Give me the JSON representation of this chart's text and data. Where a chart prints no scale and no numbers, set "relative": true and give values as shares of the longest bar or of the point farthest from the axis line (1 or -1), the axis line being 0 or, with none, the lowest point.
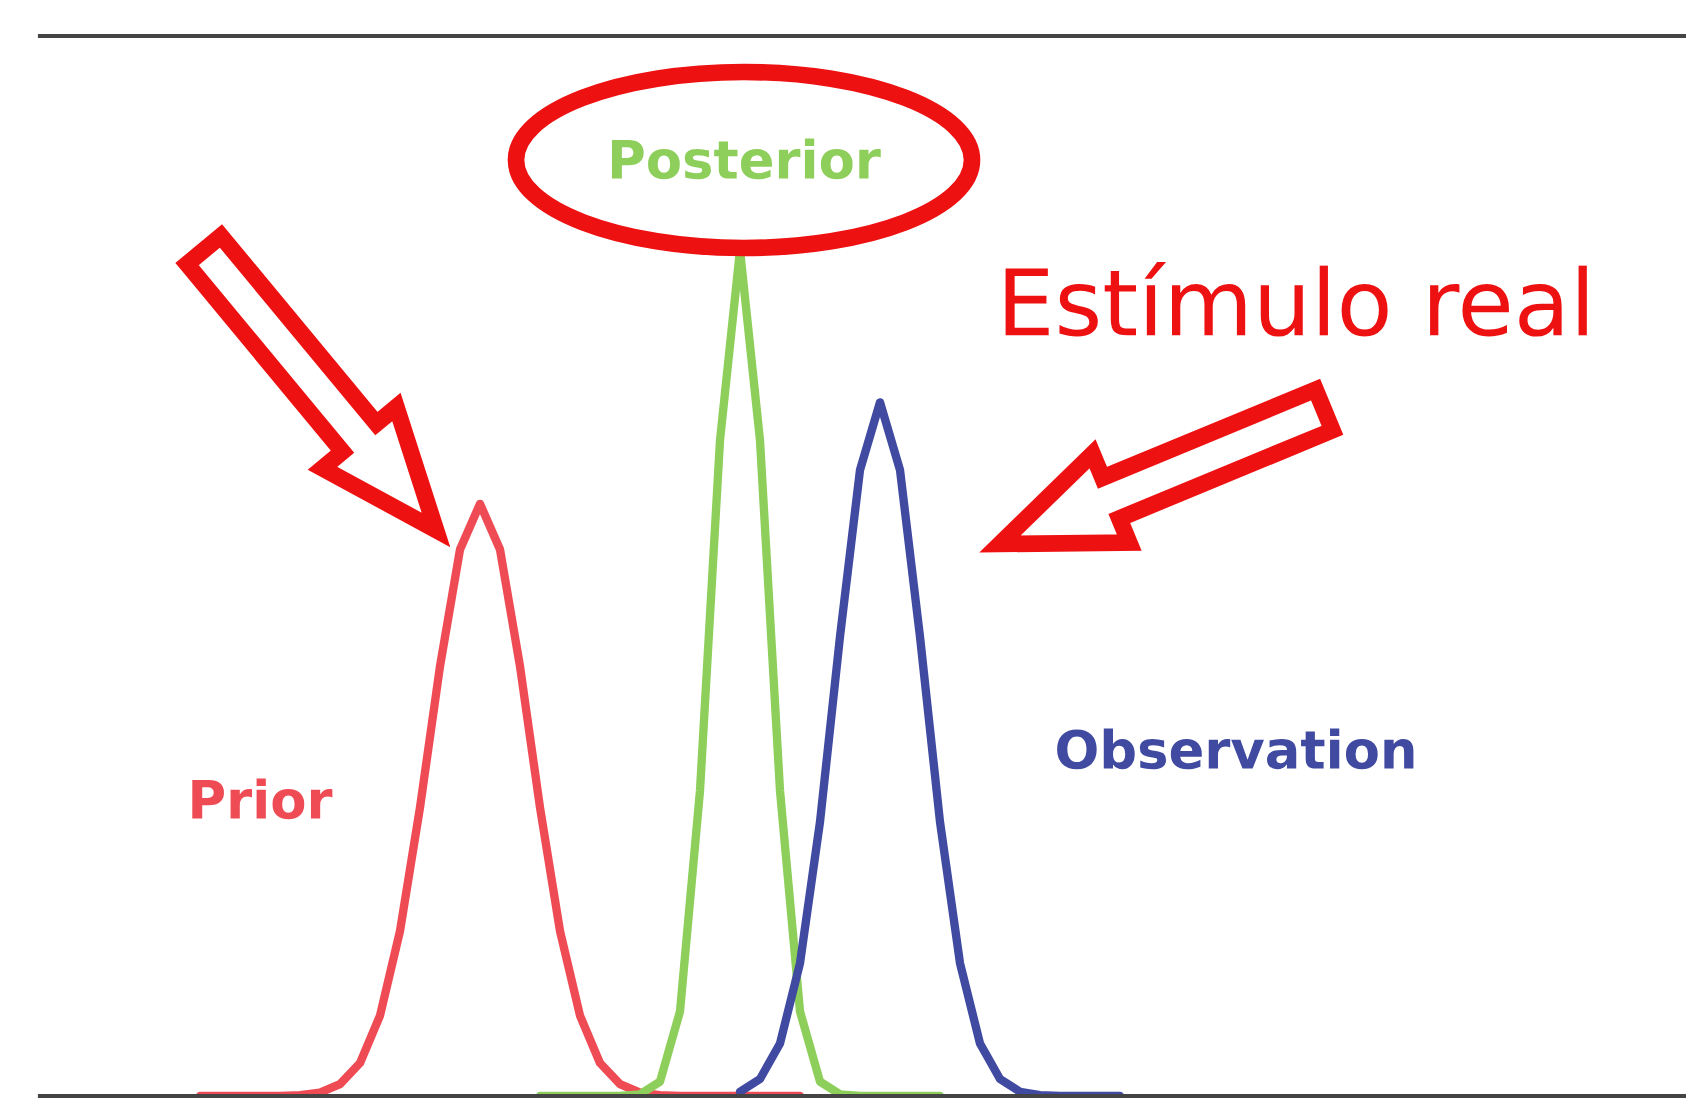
{
  "chart_data": {
    "type": "line",
    "relative": true,
    "grid": false,
    "legend": false,
    "categories": [
      null,
      null,
      null,
      null,
      null,
      null,
      null,
      null,
      null,
      null,
      null,
      null,
      null,
      null,
      null,
      null,
      null,
      null,
      null,
      null,
      null,
      null,
      null,
      null,
      null,
      null,
      null,
      null,
      null,
      null,
      null,
      null,
      null,
      null,
      null,
      null,
      null,
      null,
      null,
      null,
      null,
      null,
      null,
      null,
      null,
      null,
      null
    ],
    "series": [
      {
        "name": "Prior",
        "color": "#ee4b55",
        "values": [
          0,
          0,
          0,
          0,
          0,
          0.001,
          0.004,
          0.014,
          0.039,
          0.095,
          0.195,
          0.341,
          0.508,
          0.646,
          0.7,
          0.646,
          0.508,
          0.341,
          0.195,
          0.095,
          0.039,
          0.014,
          0.004,
          0.001,
          0,
          0,
          0,
          0,
          0,
          0,
          0,
          null,
          null,
          null,
          null,
          null,
          null,
          null,
          null,
          null,
          null,
          null,
          null,
          null,
          null,
          null,
          null
        ]
      },
      {
        "name": "Posterior",
        "color": "#8dcf5a",
        "values": [
          null,
          null,
          null,
          null,
          null,
          null,
          null,
          null,
          null,
          null,
          null,
          null,
          null,
          null,
          null,
          null,
          null,
          0,
          0,
          0,
          0,
          0,
          0.002,
          0.017,
          0.1,
          0.361,
          0.775,
          1,
          0.775,
          0.361,
          0.1,
          0.017,
          0.002,
          0,
          0,
          0,
          0,
          0,
          null,
          null,
          null,
          null,
          null,
          null,
          null,
          null,
          null
        ]
      },
      {
        "name": "Observation",
        "color": "#3f4aa0",
        "values": [
          null,
          null,
          null,
          null,
          null,
          null,
          null,
          null,
          null,
          null,
          null,
          null,
          null,
          null,
          null,
          null,
          null,
          null,
          null,
          null,
          null,
          null,
          null,
          null,
          null,
          null,
          null,
          0.005,
          0.02,
          0.062,
          0.157,
          0.324,
          0.543,
          0.74,
          0.82,
          0.74,
          0.543,
          0.324,
          0.157,
          0.062,
          0.02,
          0.005,
          0.001,
          0,
          0,
          0,
          0
        ]
      }
    ],
    "annotations": [
      "Estímulo real"
    ]
  }
}
